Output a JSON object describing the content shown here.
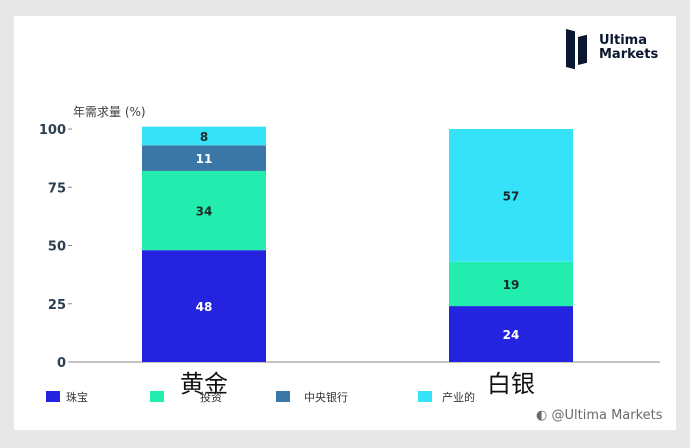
{
  "brand": {
    "line1": "Ultima",
    "line2": "Markets"
  },
  "watermark": "&#x29D6; @Ultima Markets",
  "chart_data": {
    "type": "bar",
    "stacked": true,
    "ylabel": "年需求量 (%)",
    "ylim": [
      0,
      100
    ],
    "yticks": [
      0,
      25,
      50,
      75,
      100
    ],
    "categories": [
      "黄金",
      "白银"
    ],
    "series": [
      {
        "name": "珠宝",
        "color": "#2424e0",
        "values": [
          48,
          24
        ]
      },
      {
        "name": "投资",
        "color": "#22ecae",
        "values": [
          34,
          19
        ]
      },
      {
        "name": "中央银行",
        "color": "#3a77a6",
        "values": [
          11,
          0
        ]
      },
      {
        "name": "产业的",
        "color": "#36e2f8",
        "values": [
          8,
          57
        ]
      }
    ],
    "legend_position": "bottom"
  }
}
